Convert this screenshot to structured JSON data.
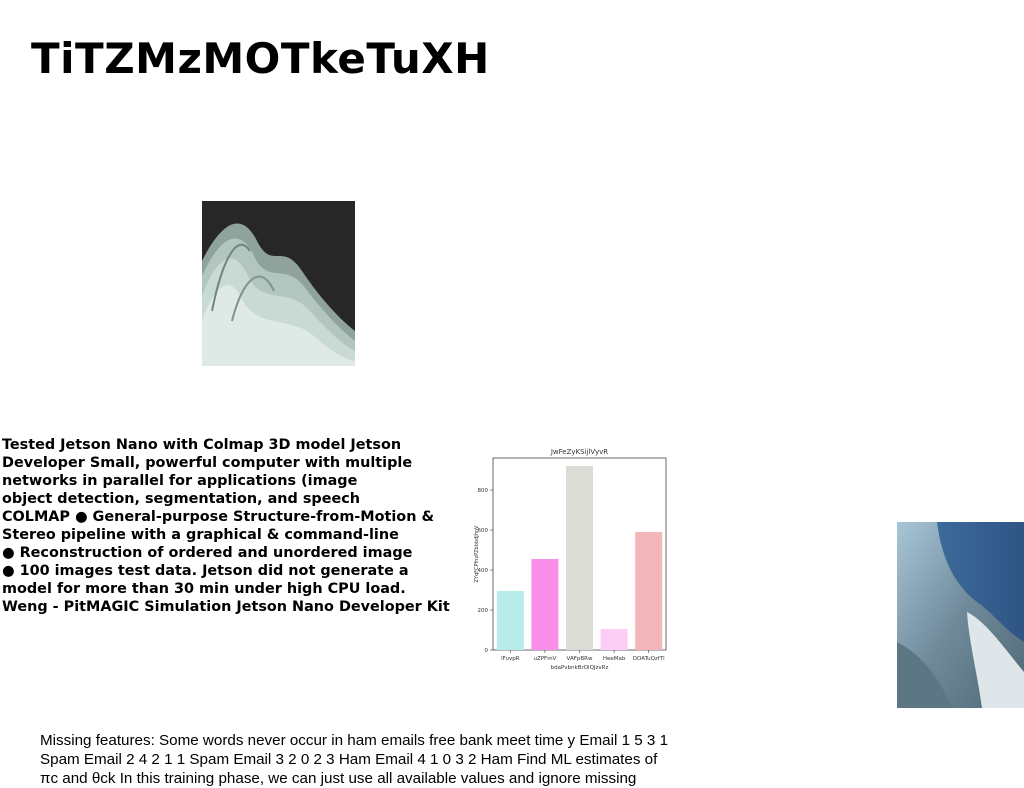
{
  "page": {
    "title": "TiTZMzMOTkeTuXH"
  },
  "body_lines": [
    "Tested Jetson Nano with Colmap 3D model Jetson",
    "Developer Small, powerful computer with multiple",
    "networks in parallel for applications (image",
    "object detection, segmentation, and speech",
    "COLMAP ● General-purpose Structure-from-Motion &",
    "Stereo pipeline with a graphical & command-line",
    "● Reconstruction of ordered and unordered image",
    "● 100 images test data. Jetson did not generate a",
    "model for more than 30 min under high CPU load.",
    "Weng - PitMAGIC Simulation Jetson Nano Developer Kit"
  ],
  "footer_lines": [
    "Missing features: Some words never occur in ham emails free bank meet time y Email 1 5 3 1",
    "Spam Email 2 4 2 1 1 Spam Email 3 2 0 2 3 Ham Email 4 1 0 3 2 Ham Find ML estimates of",
    "πc and θck In this training phase, we can just use all available values and ignore missing"
  ],
  "images": {
    "abstract": "abstract-wave-image",
    "photo": "cropped-photo"
  },
  "chart_data": {
    "type": "bar",
    "title": "JwFeZyKSijlVyvR",
    "xlabel": "bdaPvbnkBrOlQJzvRz",
    "ylabel": "ZYqFCPfnzPZbbbdJhnV",
    "categories": [
      "lFuvpR",
      "uZPFmV",
      "VAFpBRw",
      "HeeMab",
      "DOATuQzfTl"
    ],
    "values": [
      295,
      455,
      920,
      105,
      590
    ],
    "colors": [
      "#b8ecea",
      "#f98fe8",
      "#dcdcd6",
      "#fccdf5",
      "#f3b6bb"
    ],
    "ylim": [
      0,
      960
    ],
    "yticks": [
      0,
      200,
      400,
      600,
      800
    ],
    "grid": false
  }
}
